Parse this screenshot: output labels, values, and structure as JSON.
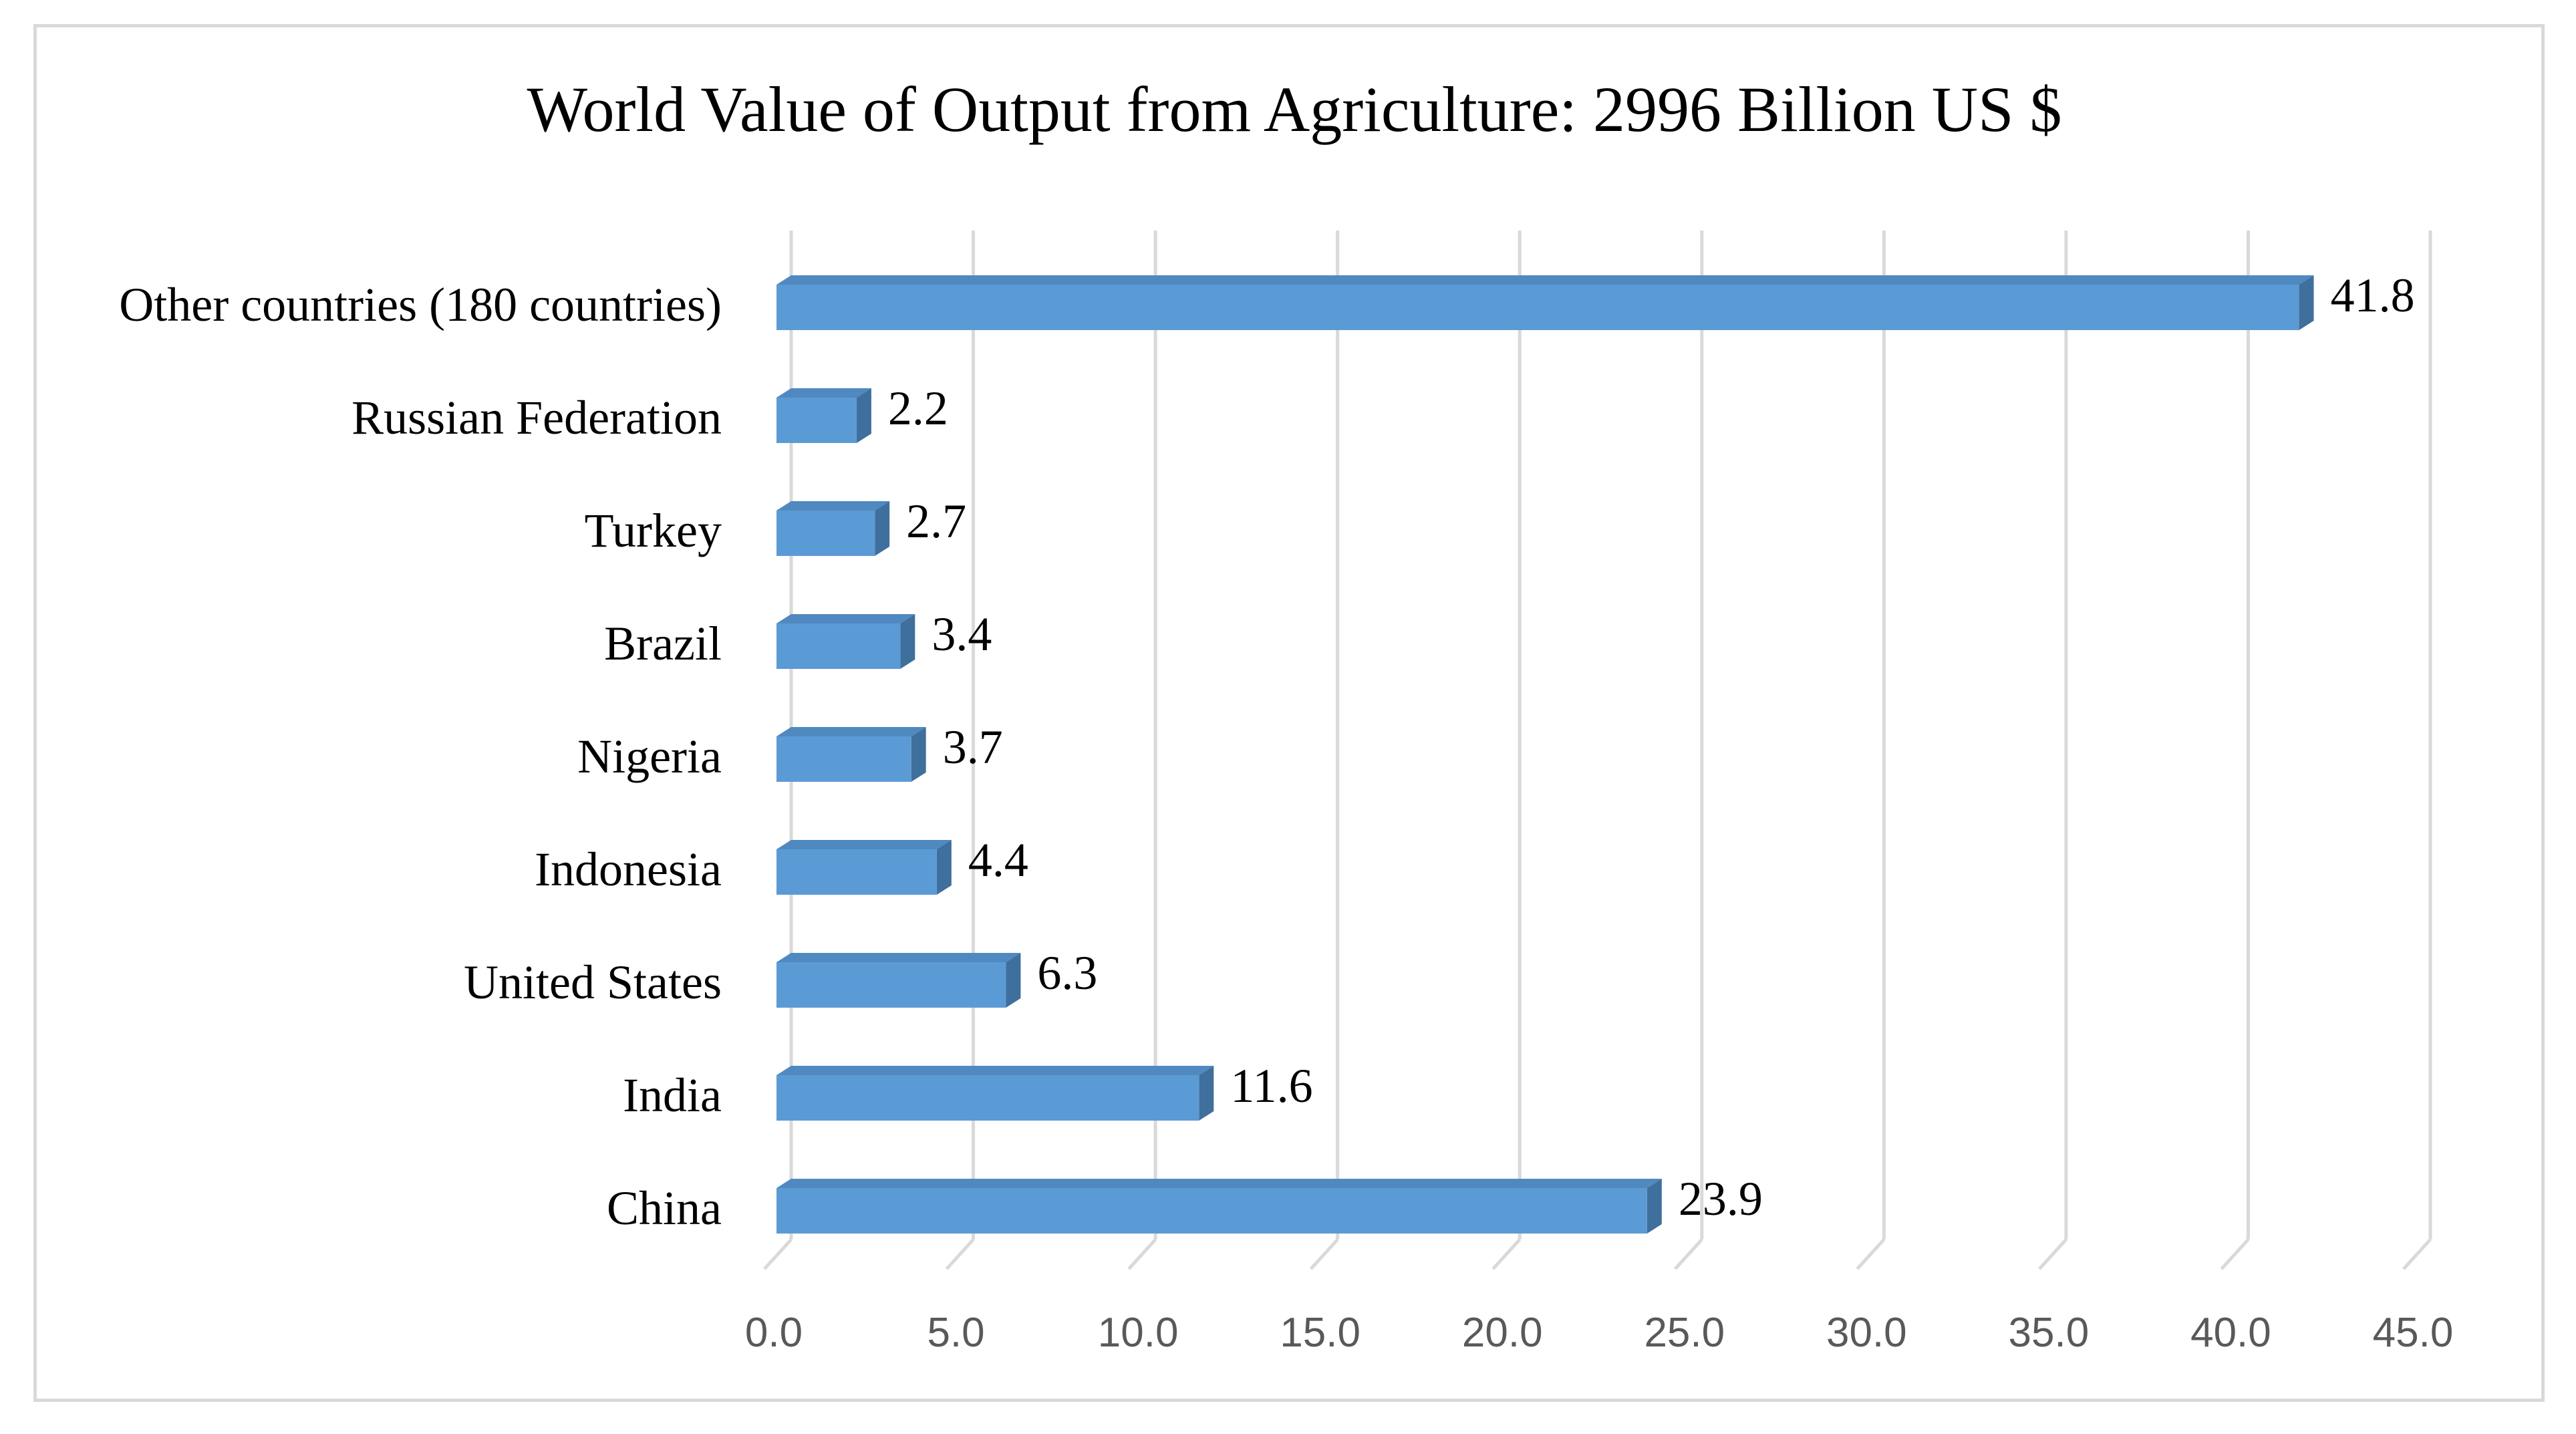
{
  "chart_data": {
    "type": "bar",
    "orientation": "horizontal",
    "title": "World Value of Output from Agriculture: 2996 Billion US $",
    "categories": [
      "Other countries (180 countries)",
      "Russian Federation",
      "Turkey",
      "Brazil",
      "Nigeria",
      "Indonesia",
      "United States",
      "India",
      "China"
    ],
    "values": [
      41.8,
      2.2,
      2.7,
      3.4,
      3.7,
      4.4,
      6.3,
      11.6,
      23.9
    ],
    "value_labels": [
      "41.8",
      "2.2",
      "2.7",
      "3.4",
      "3.7",
      "4.4",
      "6.3",
      "11.6",
      "23.9"
    ],
    "xlim": [
      0,
      45
    ],
    "x_ticks": [
      "0.0",
      "5.0",
      "10.0",
      "15.0",
      "20.0",
      "25.0",
      "30.0",
      "35.0",
      "40.0",
      "45.0"
    ],
    "xlabel": "",
    "ylabel": "",
    "grid": true,
    "legend": "none",
    "style": "3d",
    "colors": {
      "bar_front": "#5b9bd5",
      "bar_top": "#4f89c0",
      "bar_side": "#3f6f9c",
      "grid": "#d9d9d9",
      "frame": "#d9d9d9"
    }
  }
}
